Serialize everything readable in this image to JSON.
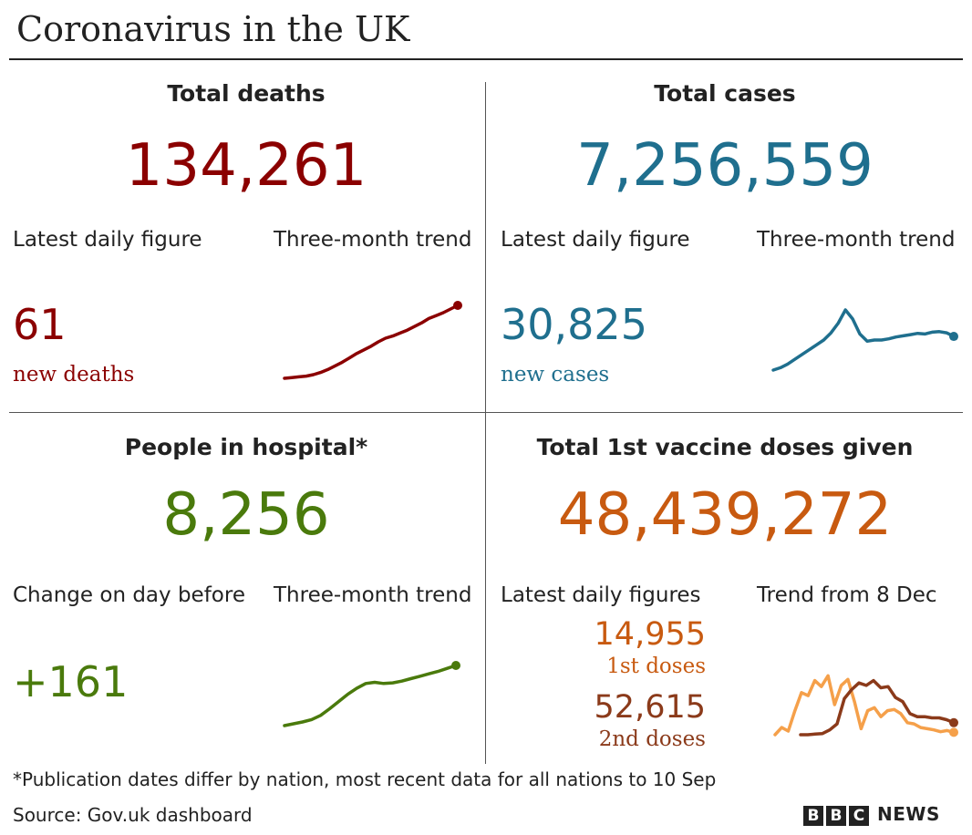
{
  "title": "Coronavirus in the UK",
  "colors": {
    "deaths": "#8b0000",
    "cases": "#1f6f8e",
    "hospital": "#4a7a0c",
    "vaccine": "#c85a10",
    "vaccine_light": "#f5a04a",
    "second_doses": "#8b3a1a"
  },
  "deaths": {
    "title": "Total deaths",
    "total": "134,261",
    "latest_label": "Latest daily figure",
    "trend_label": "Three-month trend",
    "latest_value": "61",
    "latest_caption": "new deaths"
  },
  "cases": {
    "title": "Total cases",
    "total": "7,256,559",
    "latest_label": "Latest daily figure",
    "trend_label": "Three-month trend",
    "latest_value": "30,825",
    "latest_caption": "new cases"
  },
  "hospital": {
    "title": "People in hospital*",
    "total": "8,256",
    "latest_label": "Change on day before",
    "trend_label": "Three-month trend",
    "latest_value": "+161"
  },
  "vaccine": {
    "title": "Total 1st vaccine doses given",
    "total": "48,439,272",
    "latest_label": "Latest daily figures",
    "trend_label": "Trend from 8 Dec",
    "first_value": "14,955",
    "first_caption": "1st doses",
    "second_value": "52,615",
    "second_caption": "2nd doses"
  },
  "footnote": "*Publication dates differ by nation, most recent data for all nations to 10 Sep",
  "source": "Source: Gov.uk dashboard",
  "logo": {
    "letters": [
      "B",
      "B",
      "C"
    ],
    "word": "NEWS"
  },
  "chart_data": [
    {
      "type": "line",
      "series": [
        {
          "values": [
            0.0,
            0.01,
            0.02,
            0.03,
            0.05,
            0.08,
            0.12,
            0.17,
            0.22,
            0.28,
            0.34,
            0.39,
            0.44,
            0.5,
            0.55,
            0.58,
            0.62,
            0.66,
            0.71,
            0.76,
            0.82,
            0.86,
            0.9,
            0.95,
            1.0
          ]
        }
      ]
    },
    {
      "type": "line",
      "series": [
        {
          "values": [
            0.0,
            0.04,
            0.1,
            0.18,
            0.26,
            0.34,
            0.42,
            0.5,
            0.62,
            0.78,
            1.0,
            0.85,
            0.6,
            0.48,
            0.5,
            0.5,
            0.52,
            0.55,
            0.57,
            0.59,
            0.61,
            0.6,
            0.63,
            0.64,
            0.62,
            0.56
          ]
        }
      ]
    },
    {
      "type": "line",
      "series": [
        {
          "values": [
            0.0,
            0.03,
            0.06,
            0.1,
            0.17,
            0.28,
            0.4,
            0.52,
            0.62,
            0.7,
            0.72,
            0.7,
            0.71,
            0.74,
            0.78,
            0.82,
            0.86,
            0.9,
            0.95,
            1.0
          ]
        }
      ]
    },
    {
      "type": "line",
      "series": [
        {
          "name": "1st doses",
          "values": [
            0.0,
            0.12,
            0.06,
            0.4,
            0.7,
            0.65,
            0.9,
            0.8,
            0.98,
            0.5,
            0.82,
            0.92,
            0.55,
            0.1,
            0.4,
            0.45,
            0.3,
            0.4,
            0.42,
            0.35,
            0.2,
            0.18,
            0.12,
            0.1,
            0.08,
            0.05,
            0.07,
            0.04
          ]
        },
        {
          "name": "2nd doses",
          "values": [
            0.0,
            0.0,
            0.01,
            0.02,
            0.08,
            0.18,
            0.6,
            0.75,
            0.86,
            0.82,
            0.9,
            0.78,
            0.8,
            0.62,
            0.55,
            0.35,
            0.3,
            0.3,
            0.28,
            0.28,
            0.25,
            0.2
          ]
        }
      ]
    }
  ]
}
